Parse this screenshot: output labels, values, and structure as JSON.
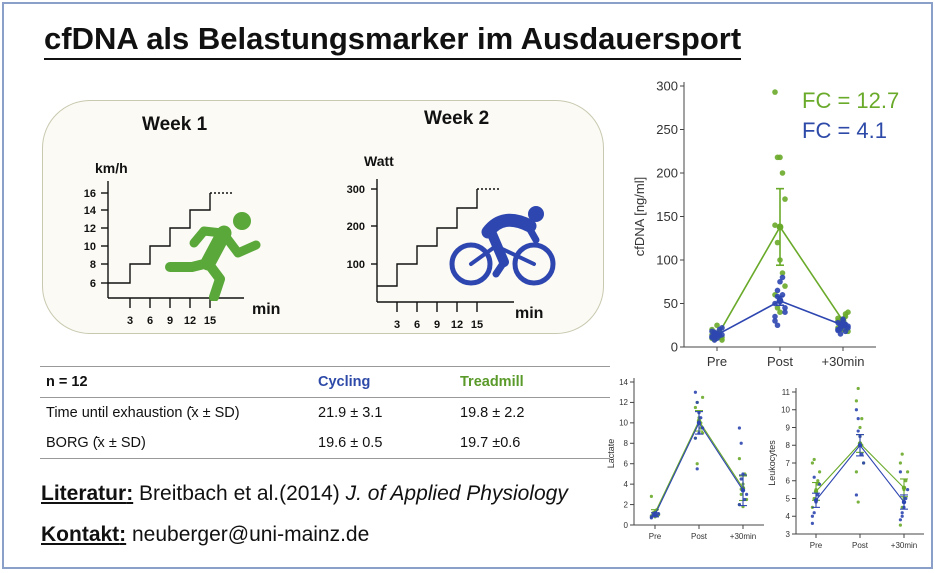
{
  "title": "cfDNA als Belastungsmarker im Ausdauersport",
  "protocol": {
    "week1": {
      "label": "Week 1",
      "unit": "km/h",
      "yticks": [
        "16",
        "14",
        "12",
        "10",
        "8",
        "6"
      ],
      "xticks": [
        "3",
        "6",
        "9",
        "12",
        "15"
      ],
      "xunit": "min",
      "icon": "runner-icon",
      "color": "#5aa83a"
    },
    "week2": {
      "label": "Week 2",
      "unit": "Watt",
      "yticks": [
        "300",
        "200",
        "100"
      ],
      "xticks": [
        "3",
        "6",
        "9",
        "12",
        "15"
      ],
      "xunit": "min",
      "icon": "cyclist-icon",
      "color": "#2e46b0"
    }
  },
  "table": {
    "header": [
      "n = 12",
      "Cycling",
      "Treadmill"
    ],
    "rows": [
      [
        "Time until exhaustion (̄x ± SD)",
        "21.9 ± 3.1",
        "19.8 ± 2.2"
      ],
      [
        "BORG (̄x ± SD)",
        "19.6 ± 0.5",
        "19.7 ±0.6"
      ]
    ]
  },
  "literature": {
    "label": "Literatur",
    "text": " Breitbach et al.(2014) ",
    "journal": "J. of Applied Physiology"
  },
  "contact": {
    "label": "Kontakt",
    "text": " neuberger@uni-mainz.de"
  },
  "colors": {
    "cycling": "#2e4aa8",
    "treadmill": "#6aaa2a"
  },
  "chart_data": [
    {
      "type": "line",
      "title": "",
      "ylabel": "cfDNA [ng/ml]",
      "categories": [
        "Pre",
        "Post",
        "+30min"
      ],
      "ylim": [
        0,
        300
      ],
      "yticks": [
        0,
        50,
        100,
        150,
        200,
        250,
        300
      ],
      "annotations": [
        "FC = 12.7",
        "FC = 4.1"
      ],
      "series": [
        {
          "color": "#6aaa2a",
          "values": [
            12,
            138,
            30
          ],
          "errors": [
            3,
            44,
            4
          ],
          "points": [
            [
              10,
              13,
              15,
              18,
              8,
              20,
              12,
              25,
              16,
              11,
              14,
              9
            ],
            [
              293,
              218,
              218,
              200,
              170,
              140,
              120,
              100,
              85,
              70,
              60,
              45,
              40
            ],
            [
              22,
              28,
              32,
              35,
              40,
              30,
              25,
              20,
              38,
              18,
              33,
              27
            ]
          ]
        },
        {
          "color": "#2e46b0",
          "values": [
            14,
            53,
            25
          ],
          "errors": [
            2,
            5,
            3
          ],
          "points": [
            [
              12,
              16,
              10,
              20,
              14,
              18,
              8,
              15,
              13,
              22,
              11,
              17
            ],
            [
              50,
              65,
              75,
              60,
              45,
              30,
              25,
              55,
              80,
              40,
              35,
              58
            ],
            [
              20,
              25,
              30,
              18,
              22,
              28,
              15,
              32,
              26,
              24,
              19,
              21
            ]
          ]
        }
      ]
    },
    {
      "type": "line",
      "title": "",
      "ylabel": "Lactate",
      "categories": [
        "Pre",
        "Post",
        "+30min"
      ],
      "ylim": [
        0,
        14
      ],
      "yticks": [
        0,
        2,
        4,
        6,
        8,
        10,
        12,
        14
      ],
      "series": [
        {
          "color": "#6aaa2a",
          "values": [
            1.2,
            10.2,
            3.6
          ],
          "errors": [
            0.3,
            1.0,
            1.2
          ],
          "points": [
            [
              0.9,
              1.1,
              1.3,
              1.5,
              1.0,
              2.8,
              1.2,
              0.8
            ],
            [
              11.5,
              12.0,
              10.5,
              9.5,
              9.0,
              8.5,
              6.0,
              11.0,
              10.0,
              12.5
            ],
            [
              2.0,
              3.0,
              4.0,
              5.0,
              2.5,
              6.5,
              3.5,
              1.8
            ]
          ]
        },
        {
          "color": "#2e46b0",
          "values": [
            1.0,
            10.0,
            3.4
          ],
          "errors": [
            0.2,
            1.1,
            1.5
          ],
          "points": [
            [
              0.7,
              1.0,
              1.2,
              0.9,
              1.1,
              0.8
            ],
            [
              13.0,
              12.0,
              11.0,
              10.5,
              9.5,
              8.5,
              5.5,
              9.0
            ],
            [
              9.5,
              8.0,
              5.0,
              2.5,
              3.0,
              2.0,
              4.5
            ]
          ]
        }
      ]
    },
    {
      "type": "line",
      "title": "",
      "ylabel": "Leukocytes",
      "categories": [
        "Pre",
        "Post",
        "+30min"
      ],
      "ylim": [
        3,
        11
      ],
      "yticks": [
        3,
        4,
        5,
        6,
        7,
        8,
        9,
        10,
        11
      ],
      "series": [
        {
          "color": "#6aaa2a",
          "values": [
            5.4,
            8.1,
            5.6
          ],
          "errors": [
            0.5,
            0.5,
            0.5
          ],
          "points": [
            [
              4.5,
              5.0,
              5.5,
              6.0,
              6.5,
              7.0,
              7.2,
              4.8,
              5.8
            ],
            [
              10.5,
              11.2,
              9.0,
              8.0,
              7.0,
              6.5,
              4.8,
              8.5,
              9.5
            ],
            [
              3.5,
              4.5,
              5.0,
              6.0,
              6.5,
              7.0,
              7.5,
              5.5
            ]
          ]
        },
        {
          "color": "#2e46b0",
          "values": [
            4.9,
            8.0,
            4.8
          ],
          "errors": [
            0.4,
            0.6,
            0.4
          ],
          "points": [
            [
              3.6,
              4.2,
              4.8,
              5.2,
              5.8,
              4.0,
              6.2
            ],
            [
              10.0,
              9.5,
              8.5,
              7.5,
              7.0,
              5.2,
              8.8
            ],
            [
              3.8,
              4.2,
              4.5,
              5.0,
              5.5,
              6.5,
              4.0
            ]
          ]
        }
      ]
    }
  ]
}
